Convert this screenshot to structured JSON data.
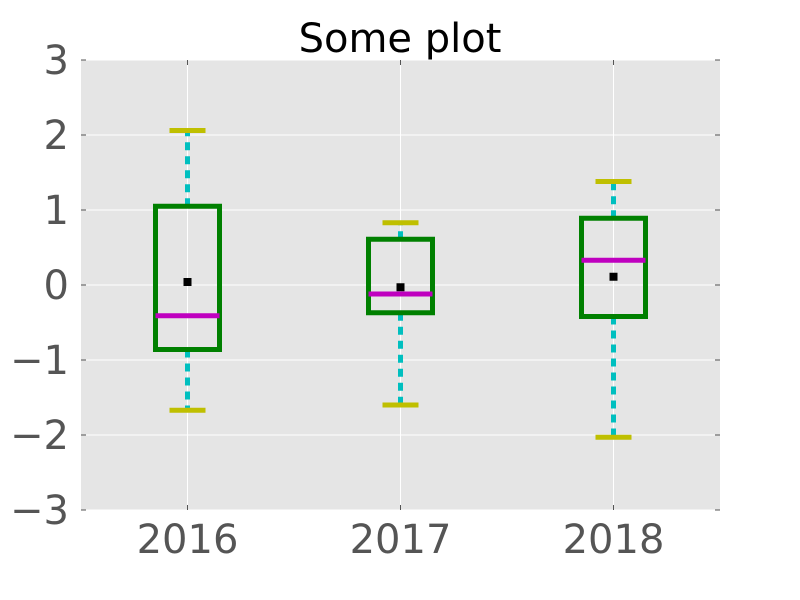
{
  "chart_data": {
    "type": "box",
    "title": "Some plot",
    "xlabel": "",
    "ylabel": "",
    "categories": [
      "2016",
      "2017",
      "2018"
    ],
    "ylim": [
      -3,
      3
    ],
    "yticks": [
      3,
      2,
      1,
      0,
      -1,
      -2,
      -3
    ],
    "ytick_labels": [
      "3",
      "2",
      "1",
      "0",
      "−1",
      "−2",
      "−3"
    ],
    "grid": true,
    "boxes": [
      {
        "category": "2016",
        "whisker_low": -1.67,
        "q1": -0.86,
        "median": -0.41,
        "q3": 1.05,
        "whisker_high": 2.06,
        "mean": 0.04
      },
      {
        "category": "2017",
        "whisker_low": -1.6,
        "q1": -0.37,
        "median": -0.12,
        "q3": 0.61,
        "whisker_high": 0.83,
        "mean": -0.03
      },
      {
        "category": "2018",
        "whisker_low": -2.03,
        "q1": -0.42,
        "median": 0.33,
        "q3": 0.89,
        "whisker_high": 1.38,
        "mean": 0.11
      }
    ],
    "colors": {
      "plot_background": "#e5e5e5",
      "grid": "#ffffff",
      "box": "#008000",
      "median": "#bf00bf",
      "whisker": "#00bfbf",
      "cap": "#bfbf00",
      "mean": "#000000",
      "tick": "#555555"
    }
  }
}
